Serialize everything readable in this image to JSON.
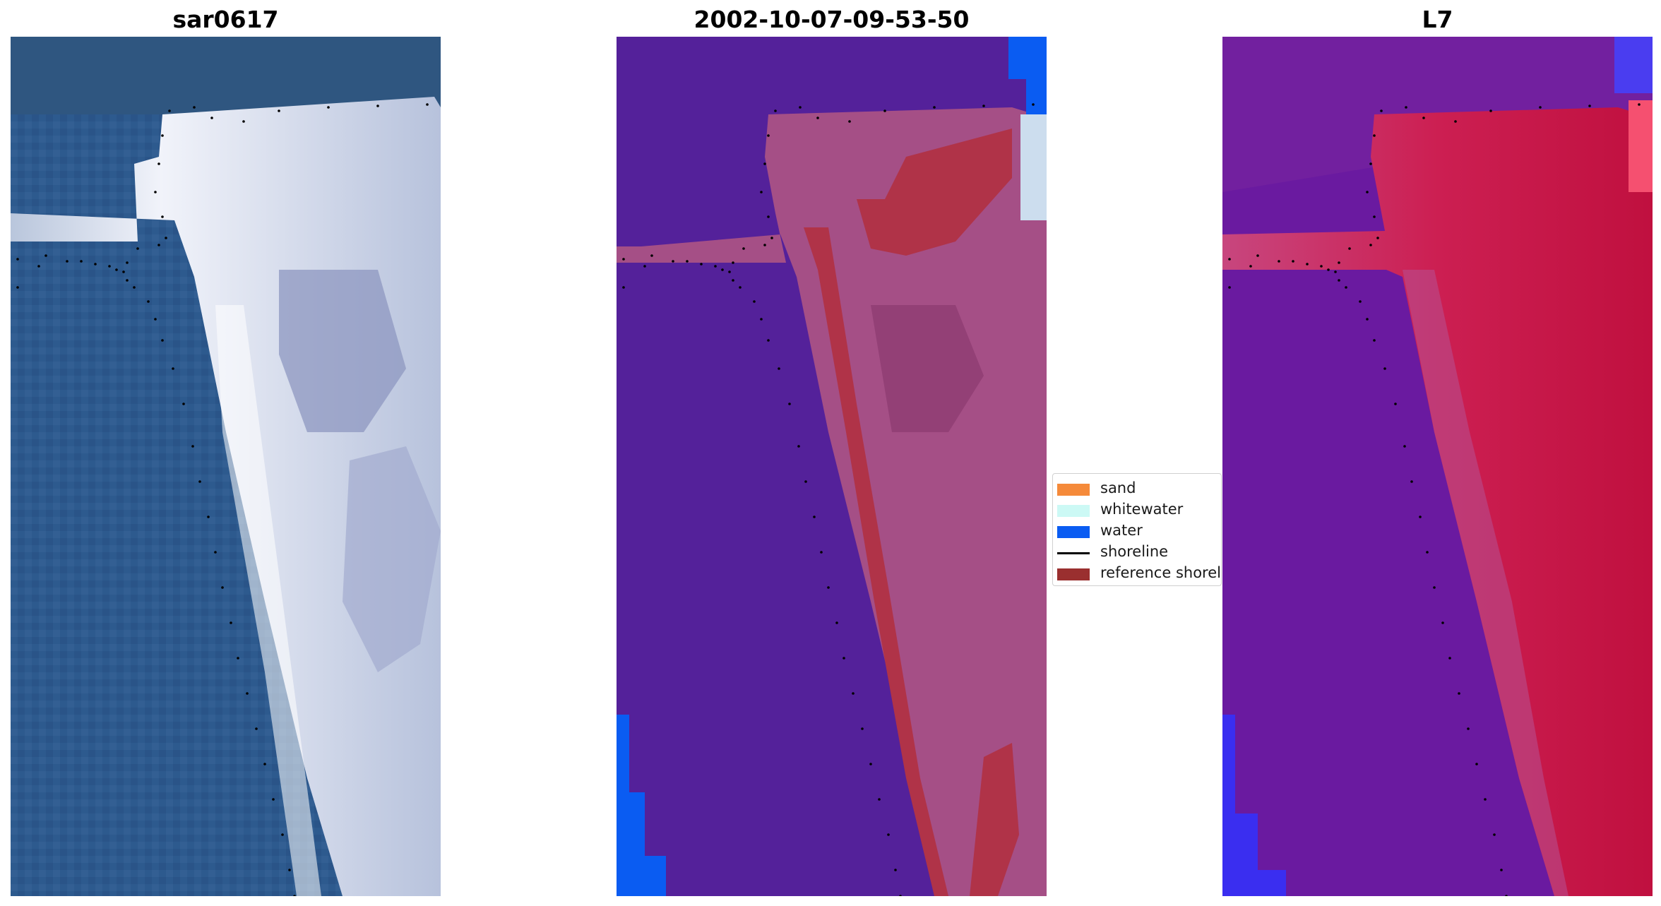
{
  "panels": [
    {
      "title": "sar0617"
    },
    {
      "title": "2002-10-07-09-53-50"
    },
    {
      "title": "L7"
    }
  ],
  "legend": {
    "items": [
      {
        "label": "sand",
        "color": "#f58a3a",
        "type": "patch"
      },
      {
        "label": "whitewater",
        "color": "#ccf9f5",
        "type": "patch"
      },
      {
        "label": "water",
        "color": "#0a5cf2",
        "type": "patch"
      },
      {
        "label": "shoreline",
        "color": "#000000",
        "type": "line"
      },
      {
        "label": "reference shoreline",
        "color": "#9a2f2f",
        "type": "patch"
      }
    ]
  },
  "colors": {
    "ocean_rgb": "#2f5a8e",
    "beach_rgb": "#e9ecf6",
    "classified_water": "#54219a",
    "classified_land": "#a54f86",
    "classified_reference": "#b03348",
    "l7_water": "#6a1aa0",
    "l7_land": "#c8164a"
  }
}
